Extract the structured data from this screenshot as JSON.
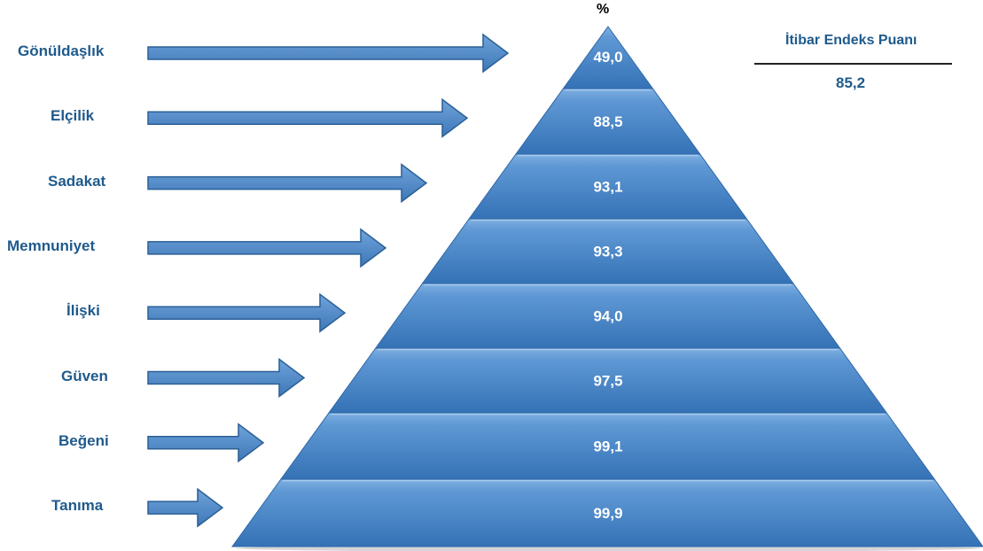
{
  "unit_symbol": "%",
  "score": {
    "title": "İtibar Endeks Puanı",
    "value": "85,2"
  },
  "levels": [
    {
      "label": "Gönüldaşlık",
      "value": "49,0"
    },
    {
      "label": "Elçilik",
      "value": "88,5"
    },
    {
      "label": "Sadakat",
      "value": "93,1"
    },
    {
      "label": "Memnuniyet",
      "value": "93,3"
    },
    {
      "label": "İlişki",
      "value": "94,0"
    },
    {
      "label": "Güven",
      "value": "97,5"
    },
    {
      "label": "Beğeni",
      "value": "99,1"
    },
    {
      "label": "Tanıma",
      "value": "99,9"
    }
  ],
  "colors": {
    "label_text": "#1f5a8c",
    "pyramid_fill": "#3f7fc2",
    "pyramid_band_light": "#6aa0d8",
    "arrow_fill": "#4a86c8",
    "arrow_stroke": "#2b5f96"
  }
}
